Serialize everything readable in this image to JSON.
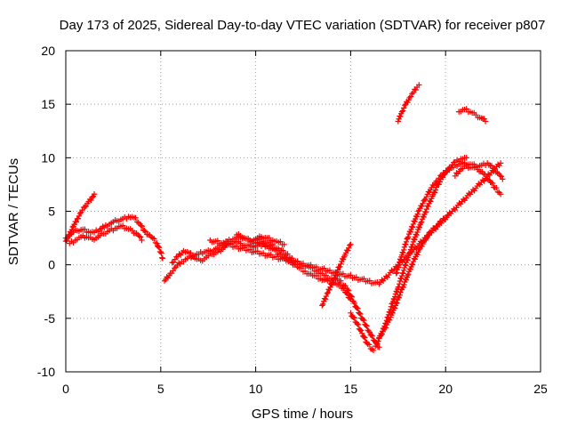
{
  "chart_data": {
    "type": "scatter",
    "title": "Day 173 of 2025, Sidereal Day-to-day VTEC variation (SDTVAR) for receiver p807",
    "xlabel": "GPS time / hours",
    "ylabel": "SDTVAR / TECUs",
    "xlim": [
      0,
      25
    ],
    "ylim": [
      -10,
      20
    ],
    "x_ticks": [
      0,
      5,
      10,
      15,
      20,
      25
    ],
    "y_ticks": [
      -10,
      -5,
      0,
      5,
      10,
      15,
      20
    ],
    "grid": true,
    "marker": "+",
    "color": "#ff0000",
    "series": [
      {
        "x": [
          0.0,
          0.2,
          0.4,
          0.6,
          0.8,
          1.0,
          1.2,
          1.4,
          1.5
        ],
        "y": [
          2.2,
          2.8,
          3.6,
          4.3,
          4.9,
          5.4,
          5.9,
          6.3,
          6.6
        ]
      },
      {
        "x": [
          0.0,
          0.3,
          0.6,
          0.9,
          1.2,
          1.5,
          1.8,
          2.1,
          2.4,
          2.7,
          3.0,
          3.3,
          3.6,
          3.9,
          4.2,
          4.5,
          4.8,
          5.0,
          5.1
        ],
        "y": [
          2.5,
          2.9,
          3.2,
          3.3,
          3.1,
          3.0,
          3.3,
          3.7,
          3.9,
          4.1,
          4.3,
          4.5,
          4.4,
          3.8,
          3.1,
          2.6,
          2.0,
          1.2,
          0.6
        ]
      },
      {
        "x": [
          0.2,
          0.5,
          0.8,
          1.1,
          1.4,
          1.7,
          2.0,
          2.3,
          2.6,
          2.9,
          3.2,
          3.5,
          3.8,
          4.0
        ],
        "y": [
          2.0,
          2.3,
          2.6,
          2.6,
          2.4,
          2.6,
          2.9,
          3.2,
          3.4,
          3.6,
          3.4,
          3.2,
          2.8,
          2.3
        ]
      },
      {
        "x": [
          5.2,
          5.5,
          5.8,
          6.1,
          6.4,
          6.7,
          7.0,
          7.3,
          7.6,
          7.9,
          8.2,
          8.5,
          8.8,
          9.1,
          9.4,
          9.7,
          10.0,
          10.3,
          10.6,
          10.9,
          11.2,
          11.5
        ],
        "y": [
          -1.5,
          -0.8,
          -0.2,
          0.3,
          0.6,
          0.9,
          1.0,
          1.2,
          1.3,
          1.5,
          1.8,
          2.2,
          2.4,
          2.6,
          2.5,
          2.3,
          2.4,
          2.6,
          2.5,
          2.3,
          2.1,
          1.9
        ]
      },
      {
        "x": [
          5.6,
          5.9,
          6.2,
          6.5,
          6.8,
          7.1,
          7.4,
          7.7,
          8.0,
          8.3,
          8.6,
          8.9,
          9.2,
          9.5,
          9.8,
          10.1,
          10.4,
          10.7,
          11.0
        ],
        "y": [
          0.2,
          0.8,
          1.3,
          1.1,
          0.6,
          0.4,
          0.7,
          1.0,
          1.2,
          1.6,
          2.0,
          2.2,
          2.0,
          1.8,
          1.7,
          1.8,
          1.9,
          1.7,
          1.5
        ]
      },
      {
        "x": [
          9.0,
          9.4,
          9.8,
          10.2,
          10.6,
          11.0,
          11.4,
          11.8,
          12.2,
          12.6,
          13.0,
          13.4,
          13.8,
          14.2,
          14.6,
          15.0
        ],
        "y": [
          2.8,
          2.5,
          2.2,
          2.0,
          1.7,
          1.4,
          0.8,
          0.3,
          -0.2,
          -0.6,
          -1.0,
          -1.3,
          -1.5,
          -1.7,
          -2.2,
          -3.2
        ]
      },
      {
        "x": [
          10.0,
          10.4,
          10.8,
          11.2,
          11.6,
          12.0,
          12.4,
          12.8,
          13.2,
          13.6,
          14.0,
          14.4,
          14.8,
          15.2,
          15.6,
          16.0,
          16.3,
          16.5
        ],
        "y": [
          2.3,
          2.2,
          1.9,
          1.5,
          1.0,
          0.4,
          0.1,
          -0.2,
          -0.6,
          -1.0,
          -1.3,
          -1.5,
          -2.2,
          -3.6,
          -5.0,
          -6.3,
          -7.2,
          -7.7
        ]
      },
      {
        "x": [
          13.5,
          13.8,
          14.1,
          14.4,
          14.7,
          15.0
        ],
        "y": [
          -3.8,
          -2.6,
          -1.4,
          -0.2,
          0.9,
          1.9
        ]
      },
      {
        "x": [
          15.0,
          15.3,
          15.6,
          15.9,
          16.2
        ],
        "y": [
          -4.5,
          -5.4,
          -6.4,
          -7.4,
          -8.0
        ]
      },
      {
        "x": [
          16.3,
          16.6,
          16.9,
          17.2,
          17.5,
          17.8,
          18.1,
          18.4,
          18.7,
          19.0,
          19.3,
          19.6,
          19.9,
          20.2,
          20.5,
          20.8,
          21.1
        ],
        "y": [
          -7.6,
          -6.6,
          -5.2,
          -3.6,
          -2.1,
          -0.5,
          1.1,
          2.6,
          3.9,
          5.2,
          6.4,
          7.5,
          8.4,
          9.1,
          9.6,
          9.9,
          10.0
        ]
      },
      {
        "x": [
          16.5,
          16.8,
          17.1,
          17.4,
          17.7,
          18.0,
          18.3,
          18.6,
          18.9,
          19.2,
          19.5,
          19.8,
          20.1
        ],
        "y": [
          -6.8,
          -5.9,
          -4.9,
          -3.6,
          -2.3,
          -1.0,
          0.3,
          1.4,
          2.3,
          3.0,
          3.6,
          4.1,
          4.6
        ]
      },
      {
        "x": [
          17.4,
          17.7,
          18.0,
          18.3,
          18.6,
          18.9,
          19.2,
          19.5,
          19.8,
          20.1,
          20.4,
          20.7,
          21.0,
          21.3,
          21.6,
          21.9,
          22.2,
          22.5,
          22.8,
          23.0
        ],
        "y": [
          -0.8,
          0.9,
          2.5,
          3.8,
          5.1,
          6.1,
          7.0,
          7.8,
          8.4,
          8.8,
          9.1,
          9.4,
          9.5,
          9.4,
          9.2,
          9.3,
          9.5,
          9.0,
          8.5,
          8.0
        ]
      },
      {
        "x": [
          20.5,
          20.8,
          21.1,
          21.4,
          21.7,
          22.0,
          22.3,
          22.6,
          22.9
        ],
        "y": [
          8.3,
          8.9,
          9.2,
          9.1,
          8.9,
          8.5,
          7.9,
          7.2,
          6.6
        ]
      },
      {
        "x": [
          17.5,
          17.7,
          17.9,
          18.1,
          18.3,
          18.5,
          18.6
        ],
        "y": [
          13.4,
          14.3,
          15.0,
          15.6,
          16.1,
          16.6,
          16.8
        ]
      },
      {
        "x": [
          20.7,
          21.0,
          21.3,
          21.6,
          21.9,
          22.1
        ],
        "y": [
          14.3,
          14.5,
          14.3,
          14.0,
          13.7,
          13.4
        ]
      },
      {
        "x": [
          7.6,
          16.5,
          22.9
        ],
        "y": [
          2.3,
          -1.8,
          9.5
        ]
      }
    ]
  }
}
